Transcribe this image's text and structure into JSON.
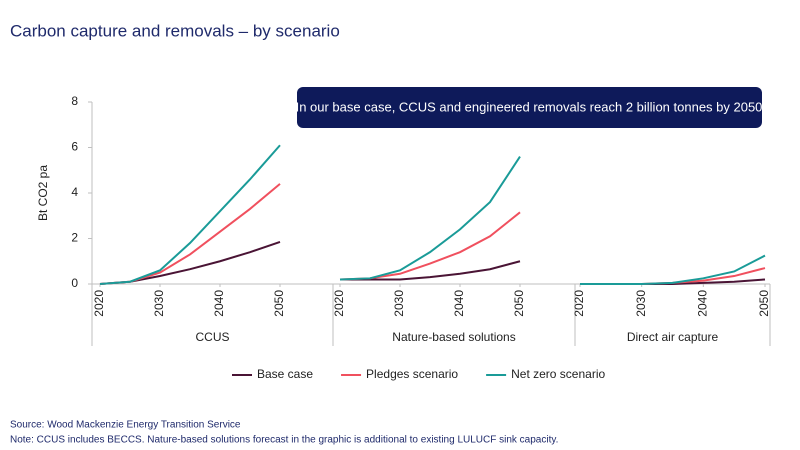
{
  "title": "Carbon capture and removals – by scenario",
  "annotation": "In our base case, CCUS and engineered removals reach 2 billion tonnes by 2050",
  "source": "Source: Wood Mackenzie Energy Transition Service",
  "note": "Note: CCUS includes BECCS. Nature-based solutions forecast in the graphic is additional to existing LULUCF sink capacity.",
  "chart_data": [
    {
      "type": "line",
      "xlabel": "CCUS",
      "ylabel": "Bt CO2 pa",
      "x": [
        2020,
        2025,
        2030,
        2035,
        2040,
        2045,
        2050
      ],
      "xlim": [
        2020,
        2050
      ],
      "xticks": [
        2020,
        2030,
        2040,
        2050
      ],
      "ylim": [
        0,
        8
      ],
      "yticks": [
        0,
        2,
        4,
        6,
        8
      ],
      "series": [
        {
          "name": "Base case",
          "color": "#4a1435",
          "values": [
            0,
            0.1,
            0.35,
            0.65,
            1.0,
            1.4,
            1.85
          ]
        },
        {
          "name": "Pledges scenario",
          "color": "#f0505e",
          "values": [
            0,
            0.1,
            0.5,
            1.3,
            2.3,
            3.3,
            4.4
          ]
        },
        {
          "name": "Net zero scenario",
          "color": "#1a9b98",
          "values": [
            0,
            0.1,
            0.6,
            1.8,
            3.2,
            4.6,
            6.1
          ]
        }
      ]
    },
    {
      "type": "line",
      "xlabel": "Nature-based solutions",
      "x": [
        2020,
        2025,
        2030,
        2035,
        2040,
        2045,
        2050
      ],
      "xlim": [
        2020,
        2050
      ],
      "xticks": [
        2020,
        2030,
        2040,
        2050
      ],
      "ylim": [
        0,
        8
      ],
      "series": [
        {
          "color": "#4a1435",
          "values": [
            0.2,
            0.2,
            0.2,
            0.3,
            0.45,
            0.65,
            1.0
          ]
        },
        {
          "color": "#f0505e",
          "values": [
            0.2,
            0.25,
            0.45,
            0.9,
            1.4,
            2.1,
            3.15
          ]
        },
        {
          "color": "#1a9b98",
          "values": [
            0.2,
            0.25,
            0.6,
            1.4,
            2.4,
            3.6,
            5.6
          ]
        }
      ]
    },
    {
      "type": "line",
      "xlabel": "Direct air capture",
      "x": [
        2020,
        2025,
        2030,
        2035,
        2040,
        2045,
        2050
      ],
      "xlim": [
        2020,
        2050
      ],
      "xticks": [
        2020,
        2030,
        2040,
        2050
      ],
      "ylim": [
        0,
        8
      ],
      "series": [
        {
          "color": "#4a1435",
          "values": [
            0,
            0,
            0,
            0,
            0.05,
            0.1,
            0.2
          ]
        },
        {
          "color": "#f0505e",
          "values": [
            0,
            0,
            0,
            0.05,
            0.15,
            0.35,
            0.7
          ]
        },
        {
          "color": "#1a9b98",
          "values": [
            0,
            0,
            0,
            0.05,
            0.25,
            0.55,
            1.25
          ]
        }
      ]
    }
  ]
}
